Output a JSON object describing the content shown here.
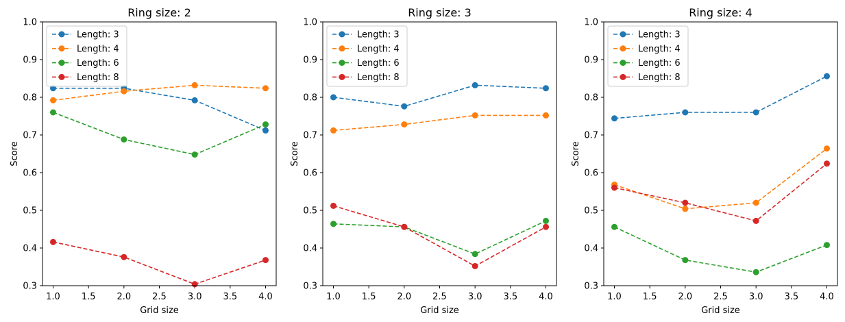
{
  "chart_data": [
    {
      "type": "line",
      "title": "Ring size: 2",
      "xlabel": "Grid size",
      "ylabel": "Score",
      "xlim": [
        0.85,
        4.15
      ],
      "ylim": [
        0.3,
        1.0
      ],
      "xticks": [
        "1.0",
        "1.5",
        "2.0",
        "2.5",
        "3.0",
        "3.5",
        "4.0"
      ],
      "yticks": [
        "0.3",
        "0.4",
        "0.5",
        "0.6",
        "0.7",
        "0.8",
        "0.9",
        "1.0"
      ],
      "legend_position": "upper-left",
      "grid": false,
      "x": [
        1,
        2,
        3,
        4
      ],
      "series": [
        {
          "name": "Length: 3",
          "color": "#1f77b4",
          "values": [
            0.824,
            0.824,
            0.792,
            0.712
          ]
        },
        {
          "name": "Length: 4",
          "color": "#ff7f0e",
          "values": [
            0.792,
            0.816,
            0.832,
            0.824
          ]
        },
        {
          "name": "Length: 6",
          "color": "#2ca02c",
          "values": [
            0.76,
            0.688,
            0.648,
            0.728
          ]
        },
        {
          "name": "Length: 8",
          "color": "#d62728",
          "values": [
            0.416,
            0.376,
            0.304,
            0.368
          ]
        }
      ]
    },
    {
      "type": "line",
      "title": "Ring size: 3",
      "xlabel": "Grid size",
      "ylabel": "Score",
      "xlim": [
        0.85,
        4.15
      ],
      "ylim": [
        0.3,
        1.0
      ],
      "xticks": [
        "1.0",
        "1.5",
        "2.0",
        "2.5",
        "3.0",
        "3.5",
        "4.0"
      ],
      "yticks": [
        "0.3",
        "0.4",
        "0.5",
        "0.6",
        "0.7",
        "0.8",
        "0.9",
        "1.0"
      ],
      "legend_position": "upper-left",
      "grid": false,
      "x": [
        1,
        2,
        3,
        4
      ],
      "series": [
        {
          "name": "Length: 3",
          "color": "#1f77b4",
          "values": [
            0.8,
            0.776,
            0.832,
            0.824
          ]
        },
        {
          "name": "Length: 4",
          "color": "#ff7f0e",
          "values": [
            0.712,
            0.728,
            0.752,
            0.752
          ]
        },
        {
          "name": "Length: 6",
          "color": "#2ca02c",
          "values": [
            0.464,
            0.456,
            0.384,
            0.472
          ]
        },
        {
          "name": "Length: 8",
          "color": "#d62728",
          "values": [
            0.512,
            0.456,
            0.352,
            0.456
          ]
        }
      ]
    },
    {
      "type": "line",
      "title": "Ring size: 4",
      "xlabel": "Grid size",
      "ylabel": "Score",
      "xlim": [
        0.85,
        4.15
      ],
      "ylim": [
        0.3,
        1.0
      ],
      "xticks": [
        "1.0",
        "1.5",
        "2.0",
        "2.5",
        "3.0",
        "3.5",
        "4.0"
      ],
      "yticks": [
        "0.3",
        "0.4",
        "0.5",
        "0.6",
        "0.7",
        "0.8",
        "0.9",
        "1.0"
      ],
      "legend_position": "upper-left",
      "grid": false,
      "x": [
        1,
        2,
        3,
        4
      ],
      "series": [
        {
          "name": "Length: 3",
          "color": "#1f77b4",
          "values": [
            0.744,
            0.76,
            0.76,
            0.856
          ]
        },
        {
          "name": "Length: 4",
          "color": "#ff7f0e",
          "values": [
            0.568,
            0.504,
            0.52,
            0.664
          ]
        },
        {
          "name": "Length: 6",
          "color": "#2ca02c",
          "values": [
            0.456,
            0.368,
            0.336,
            0.408
          ]
        },
        {
          "name": "Length: 8",
          "color": "#d62728",
          "values": [
            0.56,
            0.52,
            0.472,
            0.624
          ]
        }
      ]
    }
  ]
}
